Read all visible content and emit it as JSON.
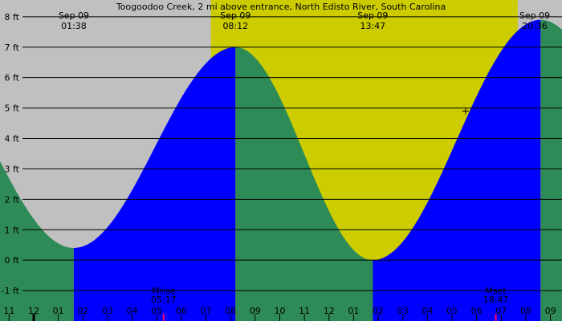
{
  "chart_data": {
    "type": "area",
    "title": "Toogoodoo Creek, 2 mi above entrance, North Edisto River, South Carolina",
    "xlabel": "",
    "ylabel": "",
    "x_range_hours": [
      -1.37,
      21.47
    ],
    "ylim": [
      -2.0,
      8.55
    ],
    "grid": true,
    "colors": {
      "background": "#c0c0c0",
      "daylight": "#cccc00",
      "falling": "#2e8b57",
      "rising": "#0000ff",
      "gridline": "#000000",
      "moon_marker": "#ff0066"
    },
    "y_ticks": [
      {
        "value": 8,
        "label": "8 ft"
      },
      {
        "value": 7,
        "label": "7 ft"
      },
      {
        "value": 6,
        "label": "6 ft"
      },
      {
        "value": 5,
        "label": "5 ft"
      },
      {
        "value": 4,
        "label": "4 ft"
      },
      {
        "value": 3,
        "label": "3 ft"
      },
      {
        "value": 2,
        "label": "2 ft"
      },
      {
        "value": 1,
        "label": "1 ft"
      },
      {
        "value": 0,
        "label": "0 ft"
      },
      {
        "value": -1,
        "label": "-1 ft"
      }
    ],
    "x_ticks": [
      {
        "hour": -1,
        "label": "11"
      },
      {
        "hour": 0,
        "label": "12"
      },
      {
        "hour": 1,
        "label": "01"
      },
      {
        "hour": 2,
        "label": "02"
      },
      {
        "hour": 3,
        "label": "03"
      },
      {
        "hour": 4,
        "label": "04"
      },
      {
        "hour": 5,
        "label": "05"
      },
      {
        "hour": 6,
        "label": "06"
      },
      {
        "hour": 7,
        "label": "07"
      },
      {
        "hour": 8,
        "label": "08"
      },
      {
        "hour": 9,
        "label": "09"
      },
      {
        "hour": 10,
        "label": "10"
      },
      {
        "hour": 11,
        "label": "11"
      },
      {
        "hour": 12,
        "label": "12"
      },
      {
        "hour": 13,
        "label": "01"
      },
      {
        "hour": 14,
        "label": "02"
      },
      {
        "hour": 15,
        "label": "03"
      },
      {
        "hour": 16,
        "label": "04"
      },
      {
        "hour": 17,
        "label": "05"
      },
      {
        "hour": 18,
        "label": "06"
      },
      {
        "hour": 19,
        "label": "07"
      },
      {
        "hour": 20,
        "label": "08"
      },
      {
        "hour": 21,
        "label": "09"
      }
    ],
    "daylight_hours": [
      7.2,
      19.67
    ],
    "tides": [
      {
        "type": "low",
        "hour": 1.63,
        "height": 0.4,
        "date_label": "Sep 09",
        "time_label": "01:38"
      },
      {
        "type": "high",
        "hour": 8.2,
        "height": 7.0,
        "date_label": "Sep 09",
        "time_label": "08:12"
      },
      {
        "type": "low",
        "hour": 13.78,
        "height": 0.0,
        "date_label": "Sep 09",
        "time_label": "13:47"
      },
      {
        "type": "high",
        "hour": 20.6,
        "height": 7.9,
        "date_label": "Sep 09",
        "time_label": "20:36"
      }
    ],
    "start_height": 4.0,
    "end_height": 7.3,
    "moon_events": [
      {
        "name": "Mrise",
        "time_label": "05:17",
        "hour": 5.28
      },
      {
        "name": "Mset",
        "time_label": "18:47",
        "hour": 18.78
      }
    ],
    "current_marker": {
      "hour": 17.55,
      "height": 4.9
    }
  }
}
